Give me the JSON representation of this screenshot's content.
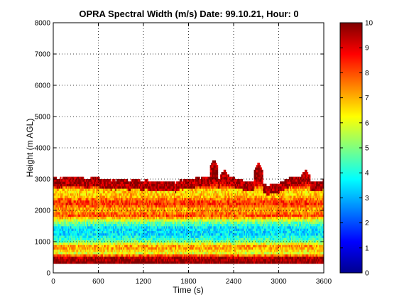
{
  "chart_data": {
    "type": "heatmap",
    "title": "OPRA Spectral Width (m/s)  Date: 99.10.21, Hour: 0",
    "xlabel": "Time (s)",
    "ylabel": "Height (m AGL)",
    "xlim": [
      0,
      3600
    ],
    "ylim": [
      0,
      8000
    ],
    "x_ticks": [
      0,
      600,
      1200,
      1800,
      2400,
      3000,
      3600
    ],
    "y_ticks": [
      0,
      1000,
      2000,
      3000,
      4000,
      5000,
      6000,
      7000,
      8000
    ],
    "grid": "dotted",
    "colormap": "jet",
    "colorbar": {
      "range": [
        0,
        10
      ],
      "ticks": [
        0,
        1,
        2,
        3,
        4,
        5,
        6,
        7,
        8,
        9,
        10
      ]
    },
    "data_top_height_approx": 3000,
    "data_bottom_height_approx": 300,
    "vertical_profile_typical": [
      {
        "height": 300,
        "value": 10
      },
      {
        "height": 450,
        "value": 9.5
      },
      {
        "height": 600,
        "value": 6
      },
      {
        "height": 800,
        "value": 7.5
      },
      {
        "height": 1000,
        "value": 4.5
      },
      {
        "height": 1200,
        "value": 3.5
      },
      {
        "height": 1400,
        "value": 3.5
      },
      {
        "height": 1600,
        "value": 5
      },
      {
        "height": 1800,
        "value": 8
      },
      {
        "height": 2000,
        "value": 7
      },
      {
        "height": 2200,
        "value": 8.5
      },
      {
        "height": 2400,
        "value": 7
      },
      {
        "height": 2600,
        "value": 6.5
      },
      {
        "height": 2800,
        "value": 9
      },
      {
        "height": 3000,
        "value": 10
      }
    ],
    "high_echo_spikes": [
      {
        "time": 2130,
        "top_height": 3600
      },
      {
        "time": 2270,
        "top_height": 3300
      },
      {
        "time": 2720,
        "top_height": 3500
      },
      {
        "time": 3350,
        "top_height": 3300
      }
    ]
  }
}
